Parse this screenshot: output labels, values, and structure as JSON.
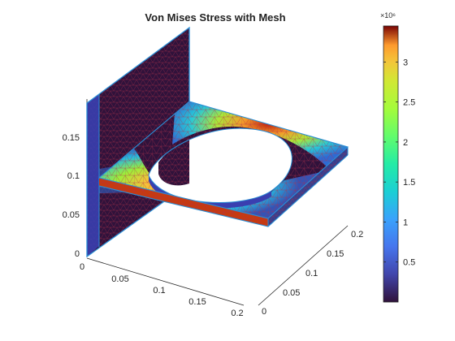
{
  "chart_data": {
    "type": "heatmap",
    "title": "Von Mises Stress with Mesh",
    "colorbar": {
      "exponent_label": "×10⁶",
      "min": 0,
      "max": 3.45,
      "ticks": [
        "0.5",
        "1",
        "1.5",
        "2",
        "2.5",
        "3"
      ],
      "tick_values": [
        0.5,
        1,
        1.5,
        2,
        2.5,
        3
      ],
      "colormap": "turbo"
    },
    "axes": {
      "x_ticks": [
        "0",
        "0.05",
        "0.1",
        "0.15",
        "0.2"
      ],
      "y_ticks": [
        "0",
        "0.05",
        "0.1",
        "0.15",
        "0.2"
      ],
      "z_ticks": [
        "0",
        "0.05",
        "0.1",
        "0.15"
      ],
      "xlim": [
        0,
        0.2
      ],
      "ylim": [
        0,
        0.2
      ],
      "zlim": [
        0,
        0.2
      ]
    },
    "mesh_color": "#b0304a",
    "edge_color": "#2a8fd6",
    "low_color": "#30123b"
  }
}
